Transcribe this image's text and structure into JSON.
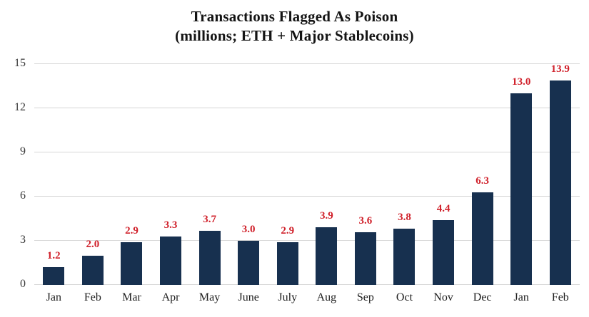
{
  "title": {
    "line1": "Transactions Flagged As Poison",
    "line2": "(millions; ETH + Major Stablecoins)"
  },
  "colors": {
    "bar": "#17304f",
    "data_label": "#d0202a",
    "grid": "#d6d6d6",
    "axis_text": "#3a3a3a"
  },
  "chart_data": {
    "type": "bar",
    "title": "Transactions Flagged As Poison (millions; ETH + Major Stablecoins)",
    "categories": [
      "Jan",
      "Feb",
      "Mar",
      "Apr",
      "May",
      "June",
      "July",
      "Aug",
      "Sep",
      "Oct",
      "Nov",
      "Dec",
      "Jan",
      "Feb"
    ],
    "values": [
      1.2,
      2.0,
      2.9,
      3.3,
      3.7,
      3.0,
      2.9,
      3.9,
      3.6,
      3.8,
      4.4,
      6.3,
      13.0,
      13.9
    ],
    "value_labels": [
      "1.2",
      "2.0",
      "2.9",
      "3.3",
      "3.7",
      "3.0",
      "2.9",
      "3.9",
      "3.6",
      "3.8",
      "4.4",
      "6.3",
      "13.0",
      "13.9"
    ],
    "xlabel": "",
    "ylabel": "",
    "ylim": [
      0,
      15
    ],
    "yticks": [
      0,
      3,
      6,
      9,
      12,
      15
    ],
    "grid": true,
    "legend": false,
    "data_labels_position": "above-bar"
  }
}
